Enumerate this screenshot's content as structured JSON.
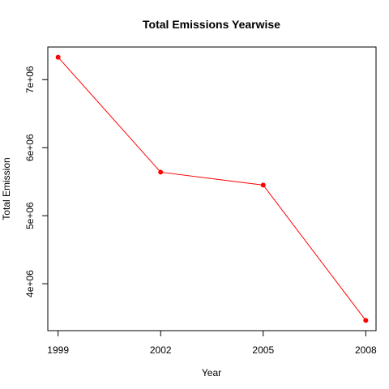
{
  "chart_data": {
    "type": "line",
    "title": "Total Emissions Yearwise",
    "xlabel": "Year",
    "ylabel": "Total Emission",
    "x": [
      1999,
      2002,
      2005,
      2008
    ],
    "x_tick_labels": [
      "1999",
      "2002",
      "2005",
      "2008"
    ],
    "y_ticks": [
      4000000,
      5000000,
      6000000,
      7000000
    ],
    "y_tick_labels": [
      "4e+06",
      "5e+06",
      "6e+06",
      "7e+06"
    ],
    "series": [
      {
        "values": [
          7330000,
          5640000,
          5450000,
          3460000
        ]
      }
    ],
    "xlim": [
      1998.7,
      2008.3
    ],
    "ylim": [
      3310000,
      7480000
    ],
    "line_color": "#ff0000",
    "point_color": "#ff0000",
    "marker": "filled-circle",
    "grid": false,
    "box": true
  }
}
